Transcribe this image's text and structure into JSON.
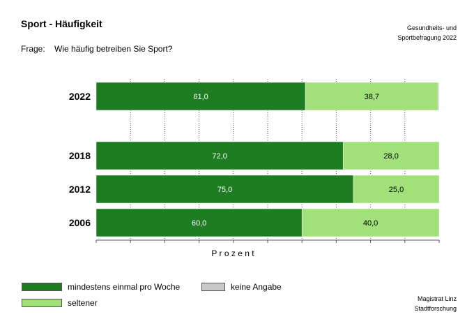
{
  "header": {
    "title": "Sport - Häufigkeit",
    "source_line1": "Gesundheits- und",
    "source_line2": "Sportbefragung 2022",
    "question_label": "Frage:",
    "question_text": "Wie häufig betreiben Sie Sport?"
  },
  "chart_data": {
    "type": "bar",
    "orientation": "horizontal",
    "stacked": true,
    "categories": [
      "2022",
      "2018",
      "2012",
      "2006"
    ],
    "gap_after_first": true,
    "series": [
      {
        "name": "mindestens einmal pro Woche",
        "color": "#1e7d22",
        "values": [
          61.0,
          72.0,
          75.0,
          60.0
        ],
        "labels": [
          "61,0",
          "72,0",
          "75,0",
          "60,0"
        ]
      },
      {
        "name": "seltener",
        "color": "#a2e07a",
        "values": [
          38.7,
          28.0,
          25.0,
          40.0
        ],
        "labels": [
          "38,7",
          "28,0",
          "25,0",
          "40,0"
        ]
      },
      {
        "name": "keine Angabe",
        "color": "#c8c8c8",
        "values": [
          0.3,
          0,
          0,
          0
        ],
        "labels": [
          "",
          "",
          "",
          ""
        ]
      }
    ],
    "xlabel": "P r o z e n t",
    "xlim": [
      0,
      100
    ],
    "grid": true,
    "legend": "bottom"
  },
  "legend": {
    "item1": "mindestens einmal pro Woche",
    "item2": "seltener",
    "item3": "keine Angabe"
  },
  "footer": {
    "line1": "Magistrat Linz",
    "line2": "Stadtforschung"
  }
}
